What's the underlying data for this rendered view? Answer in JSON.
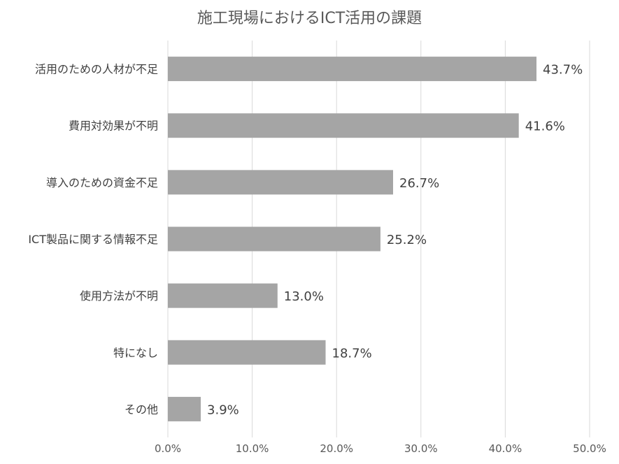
{
  "chart_data": {
    "type": "bar",
    "orientation": "horizontal",
    "title": "施工現場におけるICT活用の課題",
    "categories": [
      "活用のための人材が不足",
      "費用対効果が不明",
      "導入のための資金不足",
      "ICT製品に関する情報不足",
      "使用方法が不明",
      "特になし",
      "その他"
    ],
    "values": [
      43.7,
      41.6,
      26.7,
      25.2,
      13.0,
      18.7,
      3.9
    ],
    "value_labels": [
      "43.7%",
      "41.6%",
      "26.7%",
      "25.2%",
      "13.0%",
      "18.7%",
      "3.9%"
    ],
    "xlim": [
      0,
      50
    ],
    "xticks": [
      0,
      10,
      20,
      30,
      40,
      50
    ],
    "xtick_labels": [
      "0.0%",
      "10.0%",
      "20.0%",
      "30.0%",
      "40.0%",
      "50.0%"
    ],
    "grid": "vertical",
    "legend": "none",
    "colors": {
      "bar": "#a5a5a5",
      "grid": "#d9d9d9",
      "text": "#404040"
    }
  }
}
